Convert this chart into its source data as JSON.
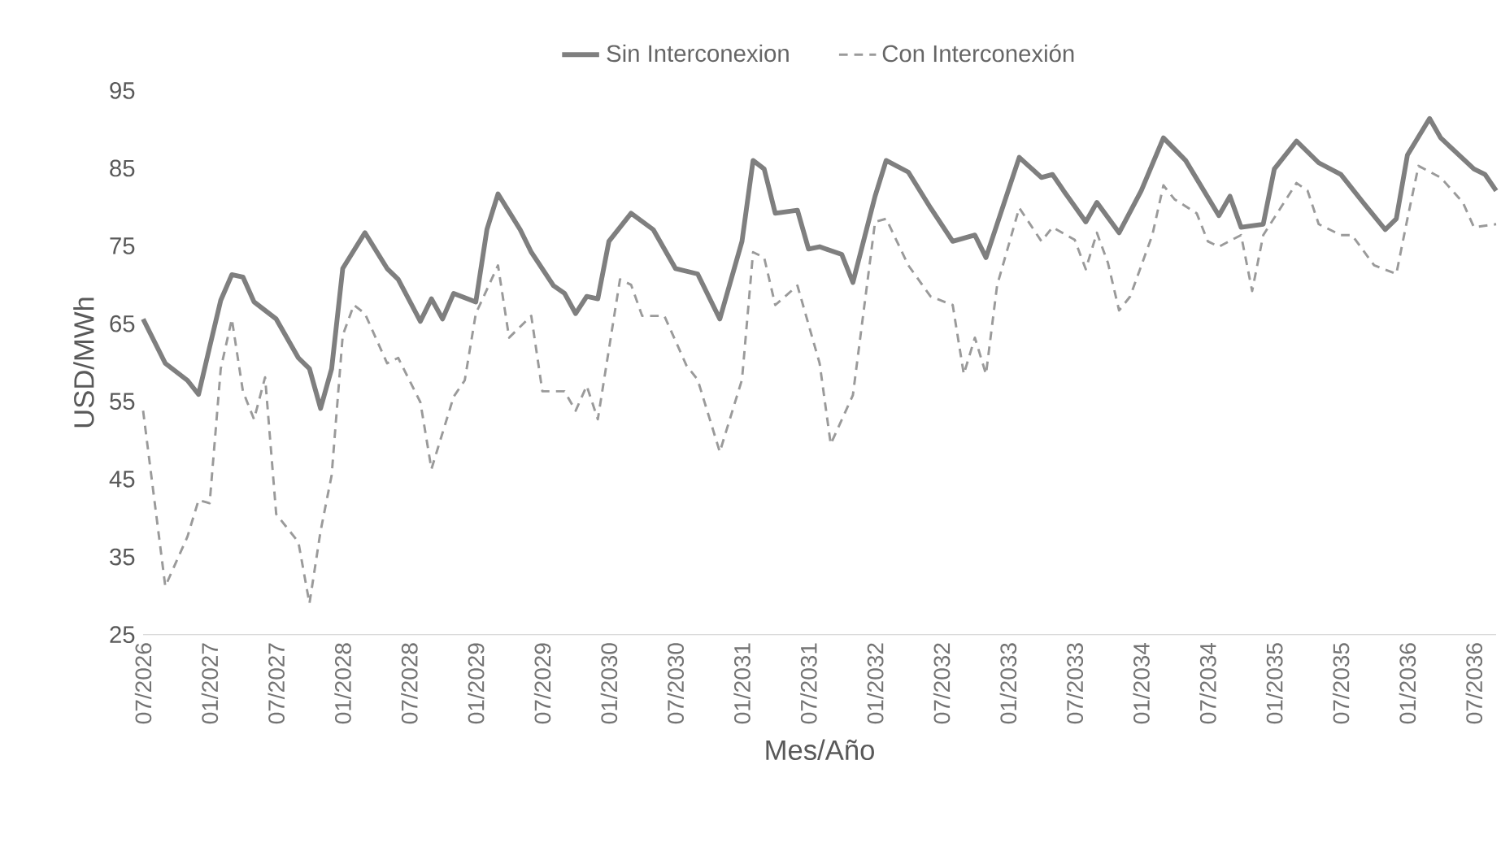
{
  "chart_data": {
    "type": "line",
    "xlabel": "Mes/Año",
    "ylabel": "USD/MWh",
    "legend": "top",
    "xlim": [
      "2026-07",
      "2036-09"
    ],
    "ylim": [
      25,
      95
    ],
    "yticks": [
      25,
      35,
      45,
      55,
      65,
      75,
      85,
      95
    ],
    "xticks": [
      {
        "value": "2026-07",
        "label": "07/2026"
      },
      {
        "value": "2027-01",
        "label": "01/2027"
      },
      {
        "value": "2027-07",
        "label": "07/2027"
      },
      {
        "value": "2028-01",
        "label": "01/2028"
      },
      {
        "value": "2028-07",
        "label": "07/2028"
      },
      {
        "value": "2029-01",
        "label": "01/2029"
      },
      {
        "value": "2029-07",
        "label": "07/2029"
      },
      {
        "value": "2030-01",
        "label": "01/2030"
      },
      {
        "value": "2030-07",
        "label": "07/2030"
      },
      {
        "value": "2031-01",
        "label": "01/2031"
      },
      {
        "value": "2031-07",
        "label": "07/2031"
      },
      {
        "value": "2032-01",
        "label": "01/2032"
      },
      {
        "value": "2032-07",
        "label": "07/2032"
      },
      {
        "value": "2033-01",
        "label": "01/2033"
      },
      {
        "value": "2033-07",
        "label": "07/2033"
      },
      {
        "value": "2034-01",
        "label": "01/2034"
      },
      {
        "value": "2034-07",
        "label": "07/2034"
      },
      {
        "value": "2035-01",
        "label": "01/2035"
      },
      {
        "value": "2035-07",
        "label": "07/2035"
      },
      {
        "value": "2036-01",
        "label": "01/2036"
      },
      {
        "value": "2036-07",
        "label": "07/2036"
      }
    ],
    "series": [
      {
        "name": "Sin Interconexion",
        "color": "#7f7f7f",
        "line_style": "solid",
        "x": [
          "2026-07",
          "2026-09",
          "2026-11",
          "2026-12",
          "2027-01",
          "2027-02",
          "2027-03",
          "2027-04",
          "2027-05",
          "2027-07",
          "2027-09",
          "2027-10",
          "2027-11",
          "2027-12",
          "2028-01",
          "2028-03",
          "2028-05",
          "2028-06",
          "2028-08",
          "2028-09",
          "2028-10",
          "2028-11",
          "2029-01",
          "2029-02",
          "2029-03",
          "2029-05",
          "2029-06",
          "2029-08",
          "2029-09",
          "2029-10",
          "2029-11",
          "2029-12",
          "2030-01",
          "2030-03",
          "2030-05",
          "2030-07",
          "2030-09",
          "2030-11",
          "2031-01",
          "2031-02",
          "2031-03",
          "2031-04",
          "2031-06",
          "2031-07",
          "2031-08",
          "2031-10",
          "2031-11",
          "2032-01",
          "2032-02",
          "2032-04",
          "2032-06",
          "2032-08",
          "2032-10",
          "2032-11",
          "2033-01",
          "2033-02",
          "2033-04",
          "2033-05",
          "2033-06",
          "2033-08",
          "2033-09",
          "2033-11",
          "2034-01",
          "2034-03",
          "2034-05",
          "2034-08",
          "2034-09",
          "2034-10",
          "2034-12",
          "2035-01",
          "2035-03",
          "2035-05",
          "2035-07",
          "2035-09",
          "2035-11",
          "2035-12",
          "2036-01",
          "2036-03",
          "2036-04",
          "2036-07",
          "2036-08",
          "2036-09"
        ],
        "values": [
          65.6,
          59.9,
          57.7,
          55.9,
          62,
          68,
          71.3,
          71.0,
          67.8,
          65.6,
          60.6,
          59.2,
          54.1,
          59.2,
          72.1,
          76.7,
          72.1,
          70.7,
          65.3,
          68.2,
          65.6,
          68.9,
          67.8,
          77.1,
          81.7,
          77.1,
          74.2,
          69.9,
          68.9,
          66.3,
          68.5,
          68.2,
          75.6,
          79.2,
          77.1,
          72.1,
          71.4,
          65.6,
          75.6,
          86.0,
          84.9,
          79.2,
          79.6,
          74.6,
          74.9,
          73.9,
          70.3,
          81.4,
          86.0,
          84.5,
          79.9,
          75.6,
          76.4,
          73.5,
          82.1,
          86.4,
          83.8,
          84.2,
          82.1,
          78.1,
          80.6,
          76.7,
          82.1,
          88.9,
          86.0,
          78.9,
          81.4,
          77.4,
          77.8,
          84.9,
          88.5,
          85.7,
          84.2,
          80.6,
          77.1,
          78.5,
          86.7,
          91.4,
          88.9,
          84.9,
          84.2,
          82.1
        ]
      },
      {
        "name": "Con Interconexión",
        "color": "#9a9a9a",
        "line_style": "dashed",
        "x": [
          "2026-07",
          "2026-09",
          "2026-11",
          "2026-12",
          "2027-01",
          "2027-02",
          "2027-03",
          "2027-04",
          "2027-05",
          "2027-06",
          "2027-07",
          "2027-09",
          "2027-10",
          "2027-11",
          "2027-12",
          "2028-01",
          "2028-02",
          "2028-03",
          "2028-05",
          "2028-06",
          "2028-08",
          "2028-09",
          "2028-11",
          "2028-12",
          "2029-01",
          "2029-03",
          "2029-04",
          "2029-06",
          "2029-07",
          "2029-09",
          "2029-10",
          "2029-11",
          "2029-12",
          "2030-02",
          "2030-03",
          "2030-04",
          "2030-06",
          "2030-08",
          "2030-09",
          "2030-11",
          "2031-01",
          "2031-02",
          "2031-03",
          "2031-04",
          "2031-06",
          "2031-08",
          "2031-09",
          "2031-11",
          "2032-01",
          "2032-02",
          "2032-04",
          "2032-06",
          "2032-08",
          "2032-09",
          "2032-10",
          "2032-11",
          "2032-12",
          "2033-02",
          "2033-04",
          "2033-05",
          "2033-07",
          "2033-08",
          "2033-09",
          "2033-10",
          "2033-11",
          "2033-12",
          "2034-02",
          "2034-03",
          "2034-04",
          "2034-06",
          "2034-07",
          "2034-08",
          "2034-10",
          "2034-11",
          "2034-12",
          "2035-03",
          "2035-04",
          "2035-05",
          "2035-07",
          "2035-08",
          "2035-10",
          "2035-12",
          "2036-01",
          "2036-02",
          "2036-04",
          "2036-06",
          "2036-07",
          "2036-09"
        ],
        "values": [
          53.8,
          31.2,
          37.6,
          42.3,
          41.9,
          59.2,
          65.6,
          56.3,
          52.7,
          58.1,
          40.5,
          36.9,
          29.0,
          38.3,
          45.5,
          63.5,
          67.4,
          66.3,
          59.9,
          60.6,
          54.9,
          46.3,
          55.6,
          57.7,
          66.3,
          72.5,
          63.2,
          66.0,
          56.3,
          56.3,
          53.8,
          57.0,
          52.7,
          70.7,
          70.0,
          66.0,
          66.0,
          59.6,
          57.8,
          48.5,
          57.8,
          74.2,
          73.5,
          67.4,
          69.9,
          59.9,
          49.5,
          55.8,
          78.1,
          78.5,
          72.5,
          68.5,
          67.4,
          58.5,
          63.2,
          58.5,
          69.9,
          79.9,
          75.6,
          77.4,
          75.8,
          72.0,
          76.7,
          72.8,
          66.7,
          68.5,
          76.4,
          82.8,
          81.0,
          79.2,
          75.6,
          74.9,
          76.4,
          69.2,
          76.4,
          83.1,
          82.1,
          77.8,
          76.4,
          76.4,
          72.5,
          71.4,
          78.5,
          85.3,
          83.8,
          80.6,
          77.4,
          77.8
        ]
      }
    ]
  }
}
